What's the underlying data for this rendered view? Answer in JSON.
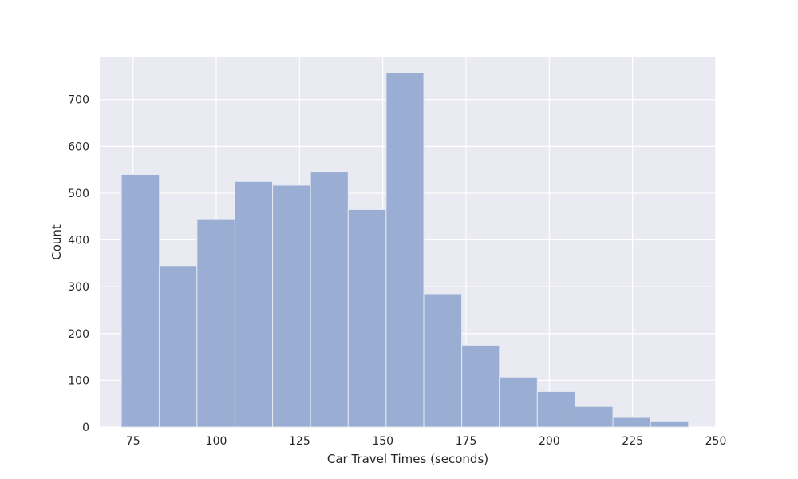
{
  "chart_data": {
    "type": "histogram",
    "xlabel": "Car Travel Times (seconds)",
    "ylabel": "Count",
    "xlim": [
      65,
      250
    ],
    "ylim": [
      0,
      790
    ],
    "grid": true,
    "x_ticks": [
      75,
      100,
      125,
      150,
      175,
      200,
      225,
      250
    ],
    "y_ticks": [
      0,
      100,
      200,
      300,
      400,
      500,
      600,
      700
    ],
    "bin_edges": [
      71.5,
      82.9,
      94.2,
      105.6,
      116.9,
      128.3,
      139.6,
      151.0,
      162.3,
      173.7,
      185.0,
      196.4,
      207.7,
      219.1,
      230.4,
      241.8
    ],
    "counts": [
      540,
      345,
      445,
      525,
      517,
      545,
      465,
      757,
      285,
      175,
      107,
      76,
      44,
      22,
      13
    ],
    "bar_color": "#9aaed3",
    "background_color": "#eaeaf2",
    "grid_color": "#ffffff"
  }
}
